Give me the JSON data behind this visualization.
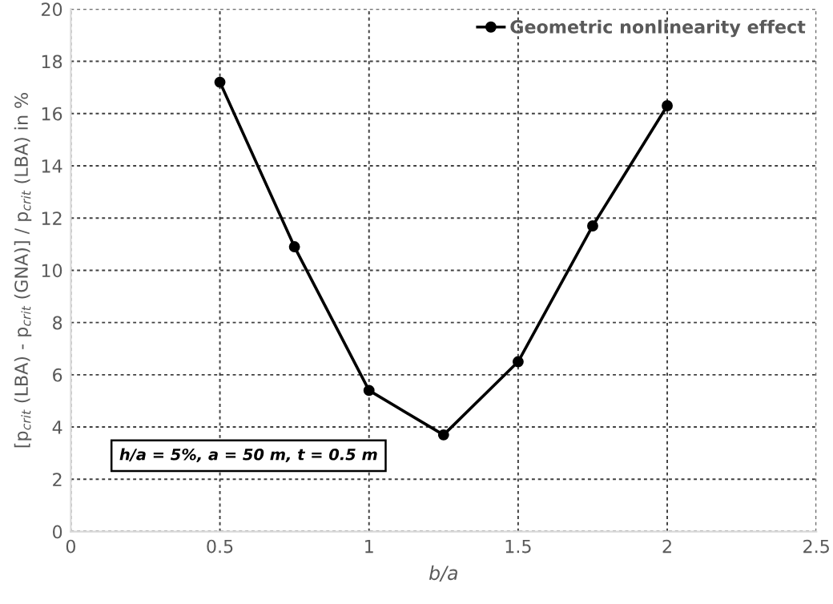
{
  "chart_data": {
    "type": "line",
    "x": [
      0.5,
      0.75,
      1.0,
      1.25,
      1.5,
      1.75,
      2.0
    ],
    "series": [
      {
        "name": "Geometric nonlinearity effect",
        "color": "#000000",
        "values": [
          17.2,
          10.9,
          5.4,
          3.7,
          6.5,
          11.7,
          16.3
        ]
      }
    ],
    "xlabel": "b/a",
    "ylabel": "[p$_{crit}$ (LBA) - p$_{crit}$ (GNA)] / p$_{crit}$ (LBA) in %",
    "annotations": [
      "h/a = 5%, a = 50 m, t = 0.5 m"
    ],
    "xlim": [
      0,
      2.5
    ],
    "xticks": [
      0,
      0.5,
      1,
      1.5,
      2,
      2.5
    ],
    "ylim": [
      0,
      20
    ],
    "yticks": [
      0,
      2,
      4,
      6,
      8,
      10,
      12,
      14,
      16,
      18,
      20
    ],
    "grid": true,
    "legend": "top right",
    "marker": "circle",
    "line_style": "solid"
  }
}
